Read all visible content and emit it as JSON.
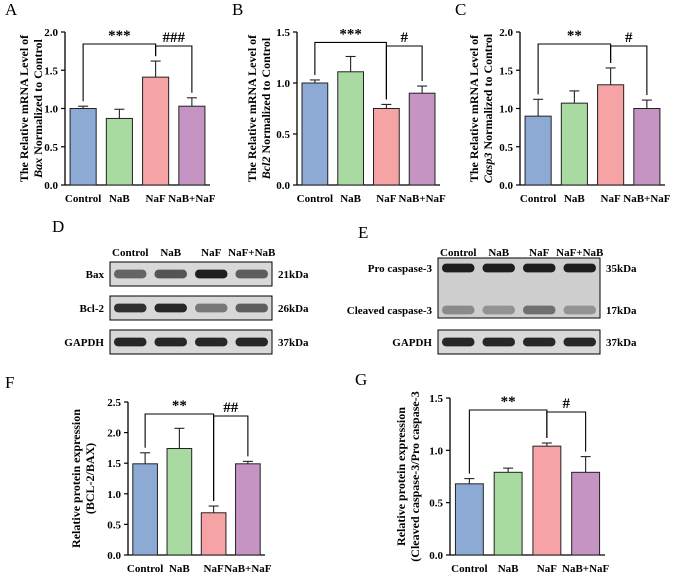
{
  "colors": {
    "control": "#8caad3",
    "nab": "#a8daa2",
    "naf": "#f5a3a5",
    "nabnaf": "#c594c2"
  },
  "chart_data": [
    {
      "type": "bar",
      "panel": "A",
      "ylabel_line1": "The Relative mRNA Level of",
      "ylabel_gene": "Bax",
      "ylabel_line2": "Normalized to Control",
      "categories": [
        "Control",
        "NaB",
        "NaF",
        "NaB+NaF"
      ],
      "values": [
        1.0,
        0.87,
        1.41,
        1.03
      ],
      "errors": [
        0.03,
        0.12,
        0.21,
        0.11
      ],
      "ylim": [
        0,
        2.0
      ],
      "ticks": [
        "0.0",
        "0.5",
        "1.0",
        "1.5",
        "2.0"
      ],
      "sig": [
        {
          "from": 0,
          "to": 2,
          "label": "***"
        },
        {
          "from": 2,
          "to": 3,
          "label": "###"
        }
      ]
    },
    {
      "type": "bar",
      "panel": "B",
      "ylabel_line1": "The Relative mRNA Level of",
      "ylabel_gene": "Bcl2",
      "ylabel_line2": "Normalized to Control",
      "categories": [
        "Control",
        "NaB",
        "NaF",
        "NaB+NaF"
      ],
      "values": [
        1.0,
        1.11,
        0.75,
        0.9
      ],
      "errors": [
        0.03,
        0.15,
        0.04,
        0.07
      ],
      "ylim": [
        0,
        1.5
      ],
      "ticks": [
        "0.0",
        "0.5",
        "1.0",
        "1.5"
      ],
      "sig": [
        {
          "from": 0,
          "to": 2,
          "label": "***"
        },
        {
          "from": 2,
          "to": 3,
          "label": "#"
        }
      ]
    },
    {
      "type": "bar",
      "panel": "C",
      "ylabel_line1": "The Relative mRNA Level of",
      "ylabel_gene": "Casp3",
      "ylabel_line2": "Normalized to Control",
      "categories": [
        "Control",
        "NaB",
        "NaF",
        "NaB+NaF"
      ],
      "values": [
        0.9,
        1.07,
        1.31,
        1.0
      ],
      "errors": [
        0.22,
        0.16,
        0.22,
        0.11
      ],
      "ylim": [
        0,
        2.0
      ],
      "ticks": [
        "0.0",
        "0.5",
        "1.0",
        "1.5",
        "2.0"
      ],
      "sig": [
        {
          "from": 0,
          "to": 2,
          "label": "**"
        },
        {
          "from": 2,
          "to": 3,
          "label": "#"
        }
      ]
    },
    {
      "type": "bar",
      "panel": "F",
      "ylabel_line1": "Relative protein expression",
      "ylabel_gene": "",
      "ylabel_line2": "(BCL-2/BAX)",
      "categories": [
        "Control",
        "NaB",
        "NaF",
        "NaB+NaF"
      ],
      "values": [
        1.49,
        1.74,
        0.69,
        1.49
      ],
      "errors": [
        0.18,
        0.33,
        0.11,
        0.04
      ],
      "ylim": [
        0,
        2.5
      ],
      "ticks": [
        "0.0",
        "0.5",
        "1.0",
        "1.5",
        "2.0",
        "2.5"
      ],
      "sig": [
        {
          "from": 0,
          "to": 2,
          "label": "**"
        },
        {
          "from": 2,
          "to": 3,
          "label": "##"
        }
      ]
    },
    {
      "type": "bar",
      "panel": "G",
      "ylabel_line1": "Relative protein expression",
      "ylabel_gene": "",
      "ylabel_line2": "(Cleaved caspase-3/Pro caspase-3",
      "categories": [
        "Control",
        "NaB",
        "NaF",
        "NaB+NaF"
      ],
      "values": [
        0.68,
        0.79,
        1.04,
        0.79
      ],
      "errors": [
        0.05,
        0.04,
        0.03,
        0.15
      ],
      "ylim": [
        0,
        1.5
      ],
      "ticks": [
        "0.0",
        "0.5",
        "1.0",
        "1.5"
      ],
      "sig": [
        {
          "from": 0,
          "to": 2,
          "label": "**"
        },
        {
          "from": 2,
          "to": 3,
          "label": "#"
        }
      ]
    }
  ],
  "blots": {
    "D": {
      "label": "D",
      "lanes": [
        "Control",
        "NaB",
        "NaF",
        "NaF+NaB"
      ],
      "rows": [
        {
          "name": "Bax",
          "size": "21kDa"
        },
        {
          "name": "Bcl-2",
          "size": "26kDa"
        },
        {
          "name": "GAPDH",
          "size": "37kDa"
        }
      ],
      "intensity": [
        [
          0.55,
          0.65,
          0.95,
          0.6
        ],
        [
          0.85,
          0.9,
          0.45,
          0.6
        ],
        [
          0.9,
          0.9,
          0.9,
          0.9
        ]
      ]
    },
    "E": {
      "label": "E",
      "lanes": [
        "Control",
        "NaB",
        "NaF",
        "NaF+NaB"
      ],
      "rows": [
        {
          "name": "Pro caspase-3",
          "size": "35kDa"
        },
        {
          "name": "Cleaved caspase-3",
          "size": "17kDa"
        },
        {
          "name": "GAPDH",
          "size": "37kDa"
        }
      ],
      "intensity": [
        [
          0.95,
          0.95,
          0.95,
          0.95
        ],
        [
          0.35,
          0.3,
          0.5,
          0.3
        ],
        [
          0.9,
          0.9,
          0.9,
          0.9
        ]
      ]
    }
  }
}
